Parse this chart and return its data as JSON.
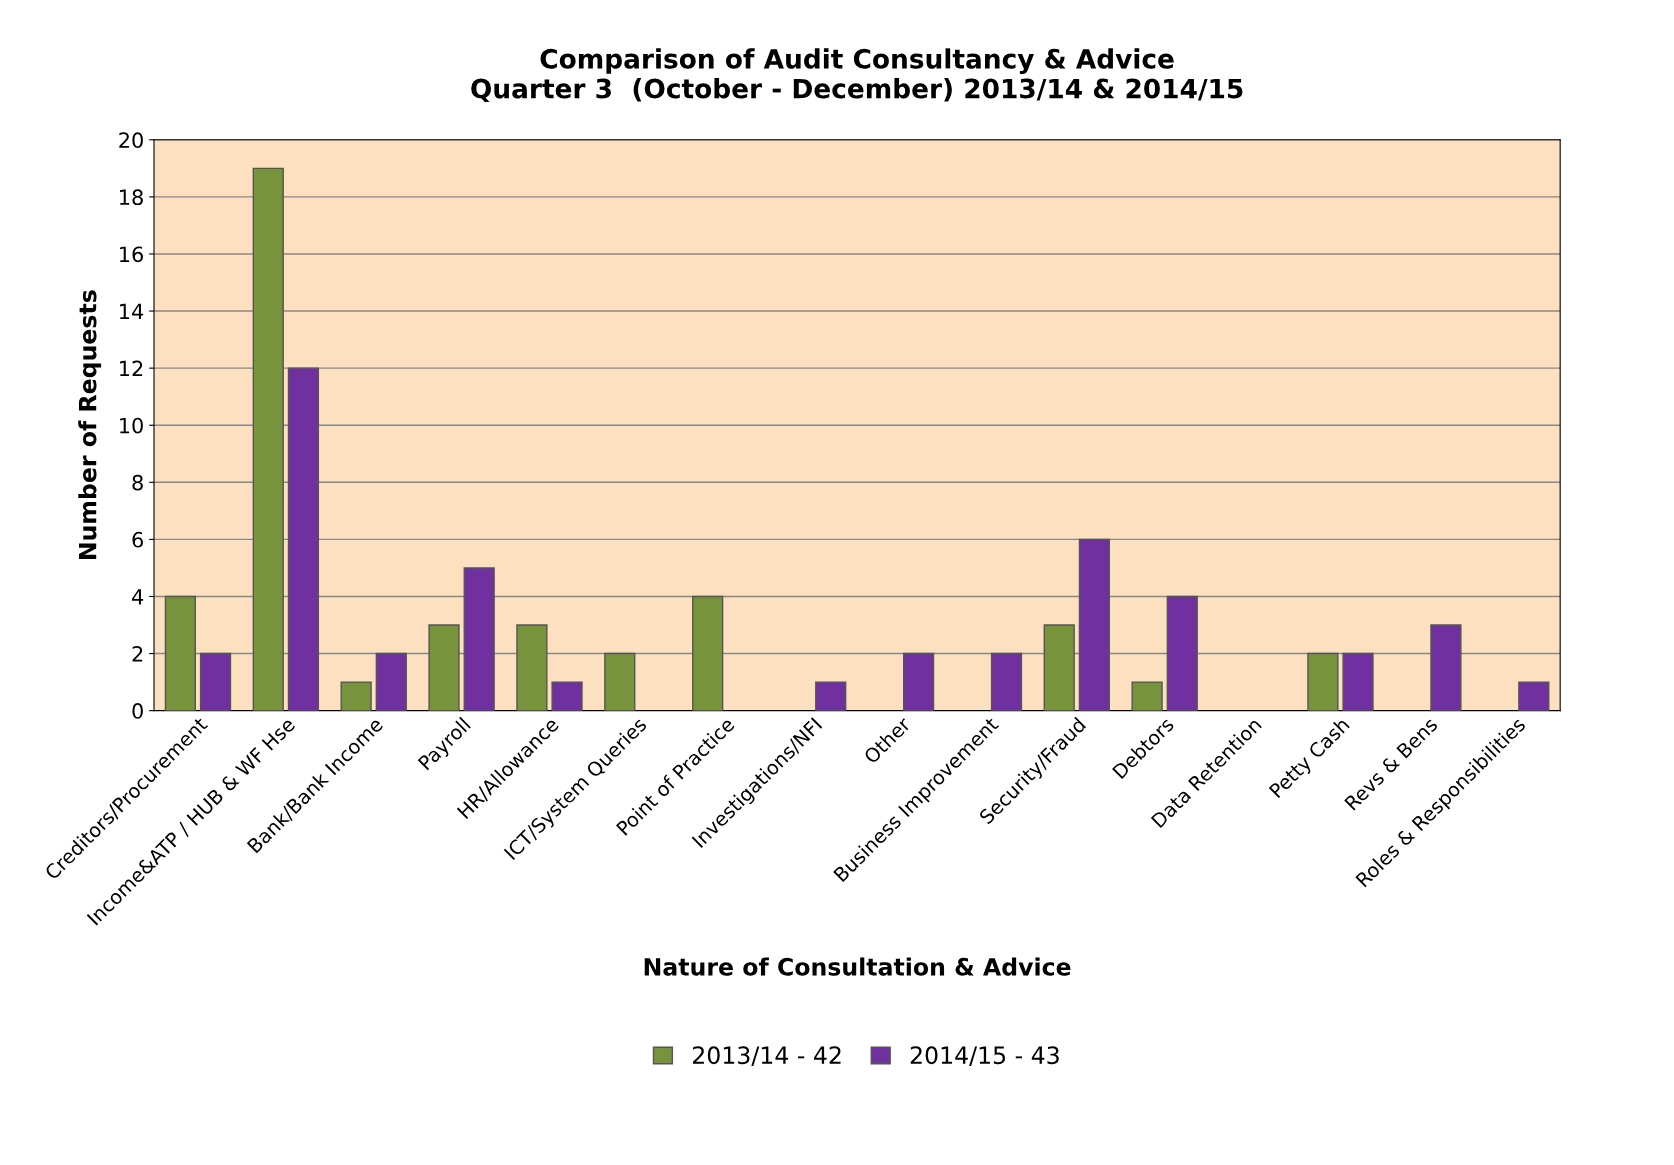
{
  "chart_data": {
    "type": "bar",
    "title": "Comparison of Audit Consultancy & Advice\nQuarter 3  (October - December) 2013/14 & 2014/15",
    "xlabel": "Nature of Consultation & Advice",
    "ylabel": "Number of Requests",
    "categories": [
      "Creditors/Procurement",
      "Income&ATP / HUB & WF Hse",
      "Bank/Bank Income",
      "Payroll",
      "HR/Allowance",
      "ICT/System Queries",
      "Point of Practice",
      "Investigations/NFI",
      "Other",
      "Business Improvement",
      "Security/Fraud",
      "Debtors",
      "Data Retention",
      "Petty Cash",
      "Revs & Bens",
      "Roles & Responsibilities"
    ],
    "series": [
      {
        "name": "2013/14 - 42",
        "color": "#77933c",
        "values": [
          4,
          19,
          1,
          3,
          3,
          2,
          4,
          0,
          0,
          0,
          3,
          1,
          0,
          2,
          0,
          0
        ]
      },
      {
        "name": "2014/15 - 43",
        "color": "#7030a0",
        "values": [
          2,
          12,
          2,
          5,
          1,
          0,
          0,
          1,
          2,
          2,
          6,
          4,
          0,
          2,
          3,
          1
        ]
      }
    ],
    "ylim": [
      0,
      20
    ],
    "yticks": [
      0,
      2,
      4,
      6,
      8,
      10,
      12,
      14,
      16,
      18,
      20
    ],
    "grid": "y",
    "legend": "bottom"
  }
}
